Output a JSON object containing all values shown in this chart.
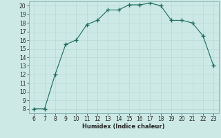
{
  "x": [
    6,
    7,
    8,
    9,
    10,
    11,
    12,
    13,
    14,
    15,
    16,
    17,
    18,
    19,
    20,
    21,
    22,
    23
  ],
  "y": [
    8,
    8,
    12,
    15.5,
    16,
    17.8,
    18.3,
    19.5,
    19.5,
    20.1,
    20.1,
    20.3,
    20.0,
    18.3,
    18.3,
    18.0,
    16.5,
    13.0
  ],
  "xlabel": "Humidex (Indice chaleur)",
  "xlim_min": 5.5,
  "xlim_max": 23.5,
  "ylim_min": 7.5,
  "ylim_max": 20.5,
  "yticks": [
    8,
    9,
    10,
    11,
    12,
    13,
    14,
    15,
    16,
    17,
    18,
    19,
    20
  ],
  "xticks": [
    6,
    7,
    8,
    9,
    10,
    11,
    12,
    13,
    14,
    15,
    16,
    17,
    18,
    19,
    20,
    21,
    22,
    23
  ],
  "line_color": "#1a6b5c",
  "marker": "+",
  "marker_size": 4,
  "bg_color": "#cce9e5",
  "grid_color": "#b8d8d4",
  "font_color": "#222222",
  "xlabel_fontsize": 6.0,
  "tick_fontsize": 5.5
}
